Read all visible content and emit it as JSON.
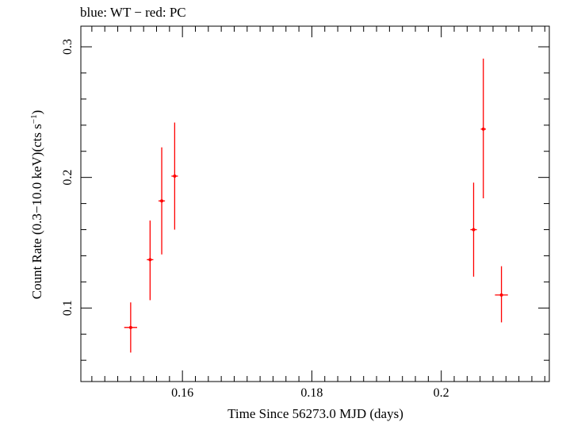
{
  "chart_data": {
    "type": "scatter",
    "title": "blue: WT − red: PC",
    "xlabel": "Time Since 56273.0 MJD (days)",
    "ylabel": "Count Rate (0.3−10.0 keV)(cts s",
    "ylabel_sup": "−1",
    "ylabel_close": ")",
    "xlim": [
      0.1443,
      0.2167
    ],
    "ylim": [
      0.0437,
      0.3158
    ],
    "grid": false,
    "x_ticks": [
      {
        "value": 0.16,
        "label": "0.16"
      },
      {
        "value": 0.18,
        "label": "0.18"
      },
      {
        "value": 0.2,
        "label": "0.2"
      }
    ],
    "y_ticks": [
      {
        "value": 0.1,
        "label": "0.1"
      },
      {
        "value": 0.2,
        "label": "0.2"
      },
      {
        "value": 0.3,
        "label": "0.3"
      }
    ],
    "x_minor_step": 0.002,
    "y_minor_step": 0.02,
    "series": [
      {
        "name": "PC",
        "color": "#ff0000",
        "points": [
          {
            "x": 0.152,
            "y": 0.0851,
            "xerr": 0.001,
            "ylo": 0.0659,
            "yhi": 0.1043
          },
          {
            "x": 0.155,
            "y": 0.137,
            "xerr": 0.0005,
            "ylo": 0.106,
            "yhi": 0.167
          },
          {
            "x": 0.1568,
            "y": 0.182,
            "xerr": 0.0005,
            "ylo": 0.141,
            "yhi": 0.223
          },
          {
            "x": 0.1588,
            "y": 0.201,
            "xerr": 0.0005,
            "ylo": 0.16,
            "yhi": 0.242
          },
          {
            "x": 0.205,
            "y": 0.16,
            "xerr": 0.0005,
            "ylo": 0.124,
            "yhi": 0.196
          },
          {
            "x": 0.2065,
            "y": 0.237,
            "xerr": 0.0004,
            "ylo": 0.184,
            "yhi": 0.291
          },
          {
            "x": 0.2093,
            "y": 0.11,
            "xerr": 0.001,
            "ylo": 0.089,
            "yhi": 0.132
          }
        ]
      }
    ]
  }
}
